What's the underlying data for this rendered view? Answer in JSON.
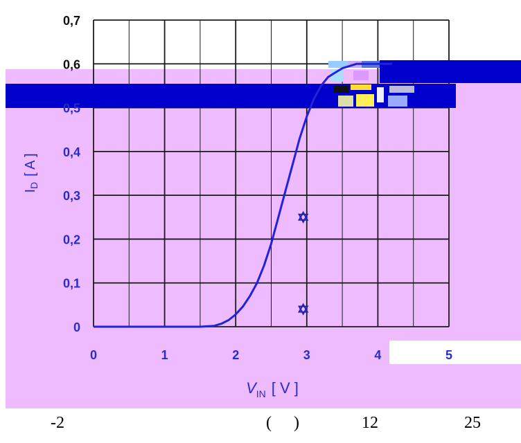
{
  "chart_data": {
    "type": "line",
    "title": "",
    "xlabel": {
      "main": "V",
      "sub": "IN",
      "unit": "[ V ]"
    },
    "ylabel": {
      "main": "I",
      "sub": "D",
      "unit": "[ A ]"
    },
    "xlim": [
      0,
      5
    ],
    "ylim": [
      0,
      0.7
    ],
    "x_ticks": [
      "0",
      "1",
      "2",
      "3",
      "4",
      "5"
    ],
    "y_ticks": [
      "0",
      "0,1",
      "0,2",
      "0,3",
      "0,4",
      "0,5",
      "0,6",
      "0,7"
    ],
    "grid": true,
    "legend": "none",
    "series": [
      {
        "x": [
          0,
          1.5,
          1.7,
          1.8,
          1.9,
          2.0,
          2.1,
          2.2,
          2.3,
          2.4,
          2.5,
          2.6,
          2.7,
          2.8,
          2.9,
          3.0,
          3.1,
          3.2,
          3.3,
          3.4,
          3.5,
          3.6,
          3.7,
          3.8,
          3.9,
          4.0,
          4.1,
          4.2
        ],
        "y": [
          0,
          0,
          0.002,
          0.007,
          0.015,
          0.028,
          0.046,
          0.07,
          0.1,
          0.14,
          0.19,
          0.25,
          0.31,
          0.37,
          0.43,
          0.48,
          0.52,
          0.55,
          0.57,
          0.58,
          0.59,
          0.595,
          0.6,
          0.6,
          0.6,
          0.6,
          0.6,
          0.6
        ]
      }
    ],
    "markers": [
      {
        "x": 2.95,
        "y": 0.25
      },
      {
        "x": 2.95,
        "y": 0.04
      }
    ],
    "colors": {
      "plot_background": "#eebbff",
      "upper_background": "#ffffff",
      "band": "#0000cc",
      "curve": "#2222dd",
      "grid": "#1a1a1a",
      "tick_label": "#2a2acc"
    }
  },
  "caption": [
    "-2",
    "(",
    ")",
    "12",
    "25"
  ]
}
